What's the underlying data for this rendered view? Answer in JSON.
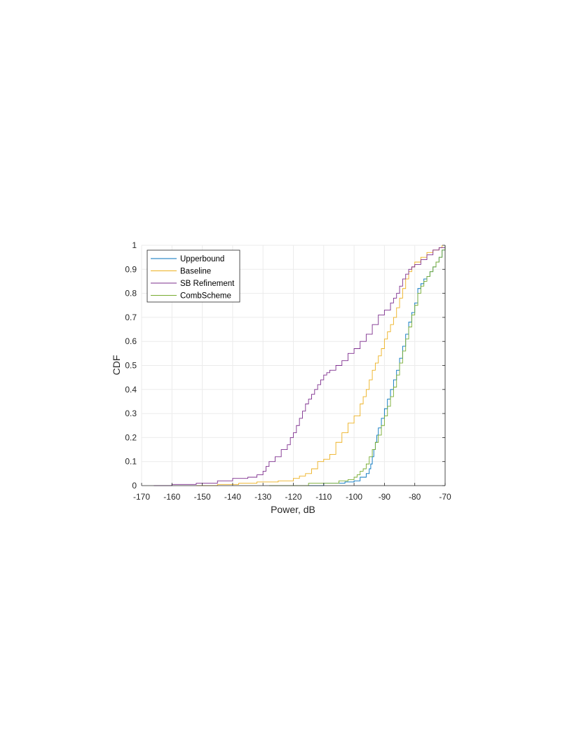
{
  "chart_data": {
    "type": "line",
    "xlabel": "Power, dB",
    "ylabel": "CDF",
    "xlim": [
      -170,
      -70
    ],
    "ylim": [
      0,
      1
    ],
    "xticks": [
      -170,
      -160,
      -150,
      -140,
      -130,
      -120,
      -110,
      -100,
      -90,
      -80,
      -70
    ],
    "yticks": [
      0,
      0.1,
      0.2,
      0.3,
      0.4,
      0.5,
      0.6,
      0.7,
      0.8,
      0.9,
      1
    ],
    "grid": true,
    "legend_position": "top-left",
    "series": [
      {
        "name": "Upperbound",
        "color": "#0072BD",
        "x": [
          -118,
          -110,
          -103,
          -100,
          -98,
          -96,
          -95,
          -94.5,
          -94,
          -93.5,
          -93,
          -92.5,
          -92,
          -91,
          -90,
          -89,
          -88,
          -87,
          -86,
          -85,
          -84,
          -83,
          -82,
          -81,
          -80,
          -79,
          -78,
          -77,
          -76,
          -75,
          -74,
          -73,
          -72,
          -71,
          -70
        ],
        "y": [
          0.0,
          0.01,
          0.015,
          0.02,
          0.035,
          0.05,
          0.07,
          0.09,
          0.12,
          0.15,
          0.18,
          0.21,
          0.24,
          0.28,
          0.32,
          0.36,
          0.4,
          0.44,
          0.48,
          0.53,
          0.58,
          0.63,
          0.68,
          0.72,
          0.76,
          0.82,
          0.84,
          0.86,
          0.87,
          0.89,
          0.91,
          0.93,
          0.95,
          0.98,
          1.0
        ]
      },
      {
        "name": "Baseline",
        "color": "#EDB120",
        "x": [
          -152,
          -145,
          -138,
          -132,
          -125,
          -120,
          -118,
          -116,
          -114,
          -112,
          -110,
          -108,
          -106,
          -104,
          -102,
          -100,
          -98,
          -97,
          -96,
          -95,
          -94,
          -93,
          -92,
          -91,
          -90,
          -89,
          -88,
          -87,
          -86,
          -85,
          -84,
          -83,
          -82,
          -81,
          -80,
          -78,
          -76,
          -74,
          -72,
          -71
        ],
        "y": [
          0.0,
          0.005,
          0.01,
          0.015,
          0.02,
          0.03,
          0.04,
          0.05,
          0.07,
          0.1,
          0.11,
          0.13,
          0.18,
          0.22,
          0.26,
          0.29,
          0.34,
          0.37,
          0.4,
          0.44,
          0.48,
          0.51,
          0.54,
          0.57,
          0.61,
          0.64,
          0.67,
          0.7,
          0.74,
          0.78,
          0.82,
          0.86,
          0.89,
          0.91,
          0.93,
          0.95,
          0.97,
          0.98,
          0.99,
          1.0
        ]
      },
      {
        "name": "SB Refinement",
        "color": "#7E2F8E",
        "x": [
          -166,
          -160,
          -152,
          -145,
          -140,
          -135,
          -132,
          -130,
          -129,
          -128,
          -126,
          -124,
          -122,
          -121,
          -120,
          -119,
          -118,
          -117,
          -116,
          -115,
          -114,
          -113,
          -112,
          -111,
          -110,
          -109,
          -108,
          -106,
          -104,
          -102,
          -100,
          -98,
          -96,
          -94,
          -92,
          -90,
          -88,
          -87,
          -86,
          -85,
          -84,
          -83,
          -82,
          -81,
          -80,
          -78,
          -76,
          -74,
          -72,
          -70
        ],
        "y": [
          0.0,
          0.005,
          0.01,
          0.02,
          0.03,
          0.035,
          0.045,
          0.06,
          0.08,
          0.1,
          0.12,
          0.15,
          0.17,
          0.2,
          0.22,
          0.25,
          0.28,
          0.31,
          0.34,
          0.36,
          0.38,
          0.4,
          0.42,
          0.44,
          0.46,
          0.47,
          0.48,
          0.5,
          0.52,
          0.55,
          0.57,
          0.6,
          0.63,
          0.67,
          0.71,
          0.73,
          0.76,
          0.78,
          0.8,
          0.83,
          0.86,
          0.88,
          0.9,
          0.91,
          0.92,
          0.94,
          0.96,
          0.98,
          0.99,
          1.0
        ]
      },
      {
        "name": "CombScheme",
        "color": "#77AC30",
        "x": [
          -128,
          -115,
          -105,
          -102,
          -100,
          -99,
          -98,
          -97,
          -96,
          -95,
          -94,
          -93,
          -92,
          -91,
          -90,
          -89,
          -88,
          -87,
          -86,
          -85,
          -84,
          -83,
          -82,
          -81,
          -80,
          -79,
          -78,
          -77,
          -76,
          -75,
          -74,
          -73,
          -72,
          -71,
          -70
        ],
        "y": [
          0.0,
          0.01,
          0.02,
          0.025,
          0.035,
          0.045,
          0.06,
          0.07,
          0.09,
          0.12,
          0.15,
          0.18,
          0.21,
          0.25,
          0.29,
          0.33,
          0.37,
          0.41,
          0.46,
          0.51,
          0.56,
          0.61,
          0.66,
          0.71,
          0.75,
          0.8,
          0.83,
          0.85,
          0.87,
          0.89,
          0.91,
          0.93,
          0.95,
          0.98,
          1.0
        ]
      }
    ]
  }
}
